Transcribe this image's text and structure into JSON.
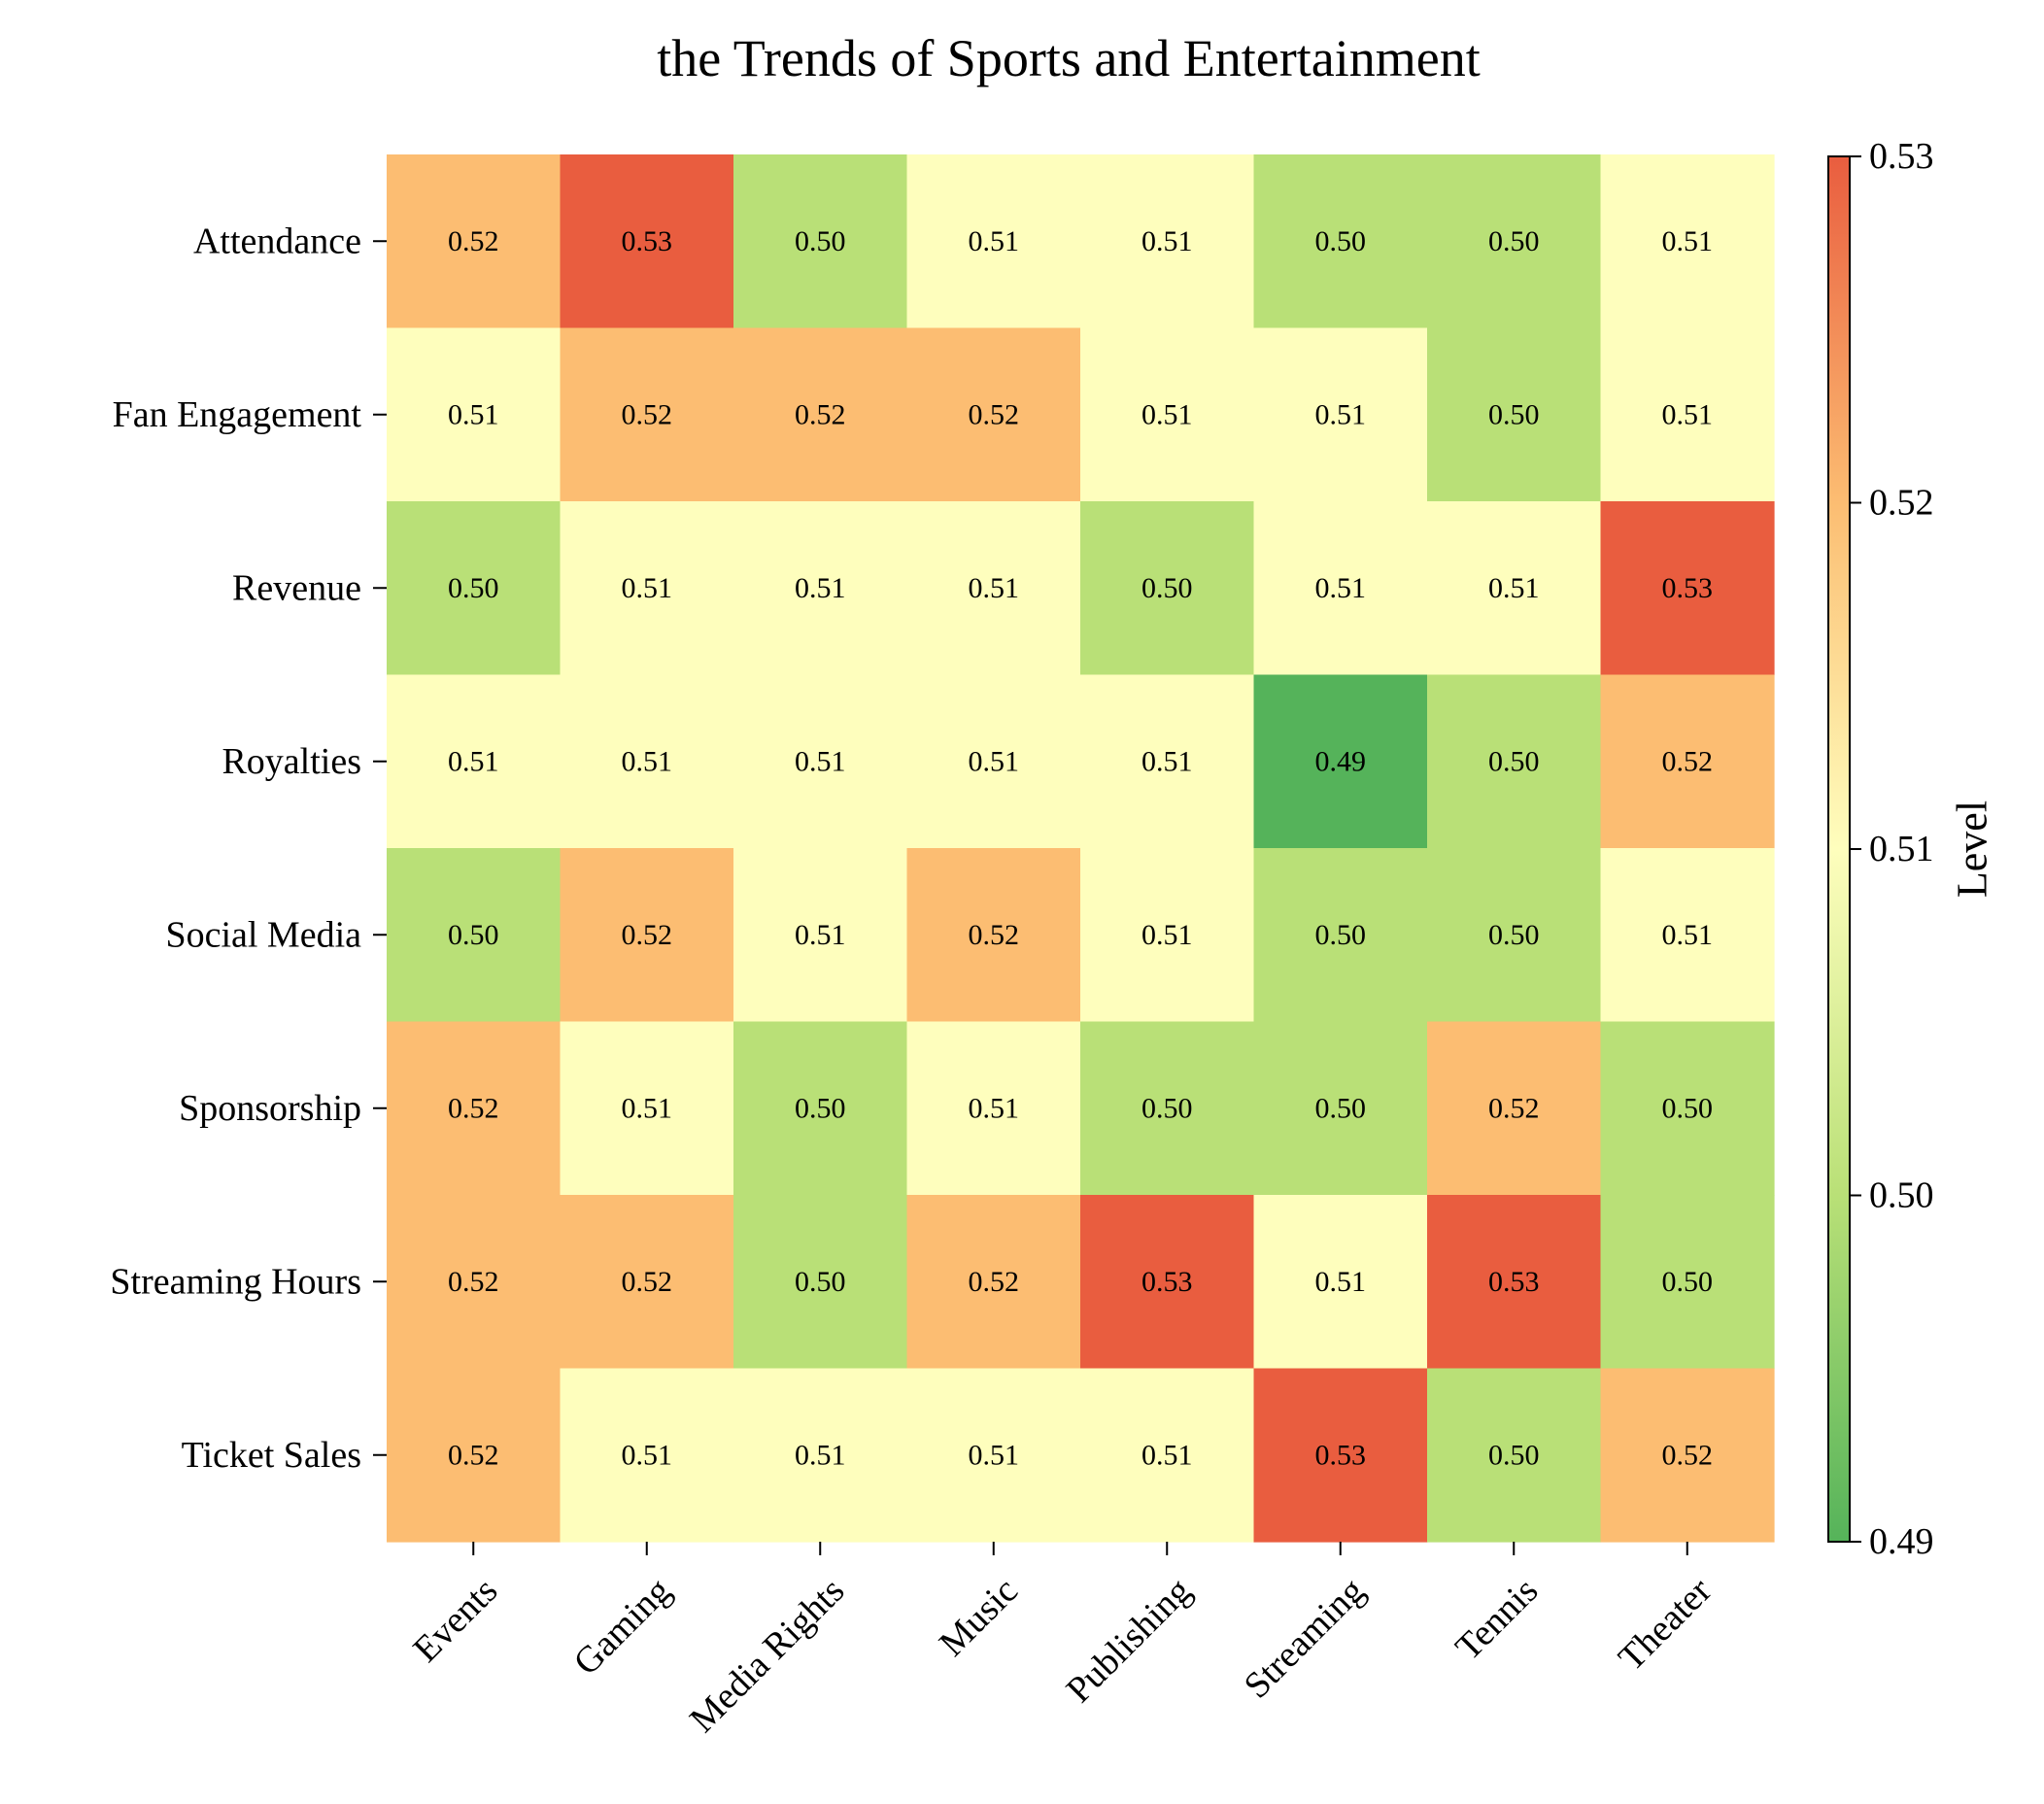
{
  "chart_data": {
    "type": "heatmap",
    "title": "the Trends of Sports and Entertainment",
    "rows": [
      "Attendance",
      "Fan Engagement",
      "Revenue",
      "Royalties",
      "Social Media",
      "Sponsorship",
      "Streaming Hours",
      "Ticket Sales"
    ],
    "columns": [
      "Events",
      "Gaming",
      "Media Rights",
      "Music",
      "Publishing",
      "Streaming",
      "Tennis",
      "Theater"
    ],
    "values": [
      [
        0.52,
        0.53,
        0.5,
        0.51,
        0.51,
        0.5,
        0.5,
        0.51
      ],
      [
        0.51,
        0.52,
        0.52,
        0.52,
        0.51,
        0.51,
        0.5,
        0.51
      ],
      [
        0.5,
        0.51,
        0.51,
        0.51,
        0.5,
        0.51,
        0.51,
        0.53
      ],
      [
        0.51,
        0.51,
        0.51,
        0.51,
        0.51,
        0.49,
        0.5,
        0.52
      ],
      [
        0.5,
        0.52,
        0.51,
        0.52,
        0.51,
        0.5,
        0.5,
        0.51
      ],
      [
        0.52,
        0.51,
        0.5,
        0.51,
        0.5,
        0.5,
        0.52,
        0.5
      ],
      [
        0.52,
        0.52,
        0.5,
        0.52,
        0.53,
        0.51,
        0.53,
        0.5
      ],
      [
        0.52,
        0.51,
        0.51,
        0.51,
        0.51,
        0.53,
        0.5,
        0.52
      ]
    ],
    "colorbar": {
      "label": "Level",
      "ticks": [
        0.49,
        0.5,
        0.51,
        0.52,
        0.53
      ],
      "range": [
        0.49,
        0.53
      ],
      "colors": {
        "0.49": "#55b35a",
        "0.50": "#b9e077",
        "0.51": "#fefebd",
        "0.52": "#fcbd72",
        "0.53": "#e95d3f"
      }
    },
    "grid": false
  }
}
